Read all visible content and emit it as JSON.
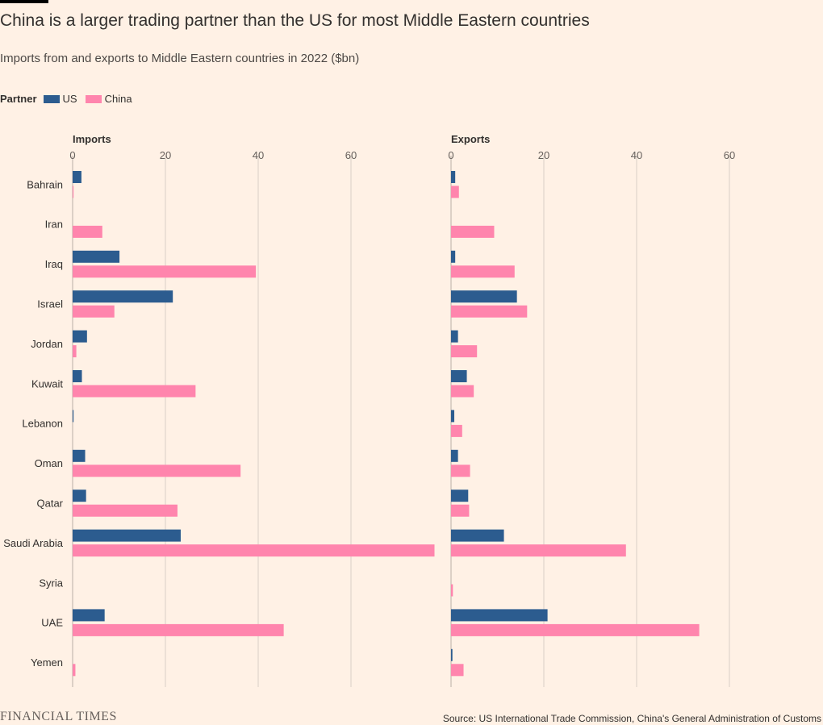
{
  "title": "China is a larger trading partner than the US for most Middle Eastern countries",
  "subtitle": "Imports from and exports to Middle Eastern countries in 2022 ($bn)",
  "legend": {
    "title": "Partner",
    "items": [
      {
        "label": "US",
        "color": "#2c5c8f"
      },
      {
        "label": "China",
        "color": "#ff85ad"
      }
    ]
  },
  "footer": {
    "logo": "FINANCIAL TIMES",
    "source": "Source: US International Trade Commission, China's General Administration of Customs"
  },
  "chart_data": [
    {
      "type": "bar",
      "orientation": "horizontal",
      "panel_title": "Imports",
      "xlim": [
        0,
        78
      ],
      "xticks": [
        0,
        20,
        40,
        60
      ],
      "grid": true,
      "categories": [
        "Bahrain",
        "Iran",
        "Iraq",
        "Israel",
        "Jordan",
        "Kuwait",
        "Lebanon",
        "Oman",
        "Qatar",
        "Saudi Arabia",
        "Syria",
        "UAE",
        "Yemen"
      ],
      "series": [
        {
          "name": "US",
          "color": "#2c5c8f",
          "values": [
            1.9,
            0,
            10.1,
            21.6,
            3.1,
            2.0,
            0.2,
            2.7,
            2.9,
            23.3,
            0,
            6.9,
            0
          ]
        },
        {
          "name": "China",
          "color": "#ff85ad",
          "values": [
            0.2,
            6.4,
            39.5,
            9.0,
            0.8,
            26.5,
            0,
            36.2,
            22.6,
            78.0,
            0,
            45.5,
            0.6
          ]
        }
      ]
    },
    {
      "type": "bar",
      "orientation": "horizontal",
      "panel_title": "Exports",
      "xlim": [
        0,
        60
      ],
      "xticks": [
        0,
        20,
        40,
        60
      ],
      "grid": true,
      "categories": [
        "Bahrain",
        "Iran",
        "Iraq",
        "Israel",
        "Jordan",
        "Kuwait",
        "Lebanon",
        "Oman",
        "Qatar",
        "Saudi Arabia",
        "Syria",
        "UAE",
        "Yemen"
      ],
      "series": [
        {
          "name": "US",
          "color": "#2c5c8f",
          "values": [
            0.9,
            0,
            0.9,
            14.2,
            1.5,
            3.4,
            0.7,
            1.5,
            3.7,
            11.4,
            0,
            20.8,
            0.3
          ]
        },
        {
          "name": "China",
          "color": "#ff85ad",
          "values": [
            1.7,
            9.3,
            13.7,
            16.4,
            5.6,
            4.9,
            2.4,
            4.1,
            3.9,
            37.7,
            0.4,
            53.5,
            2.7
          ]
        }
      ]
    }
  ]
}
